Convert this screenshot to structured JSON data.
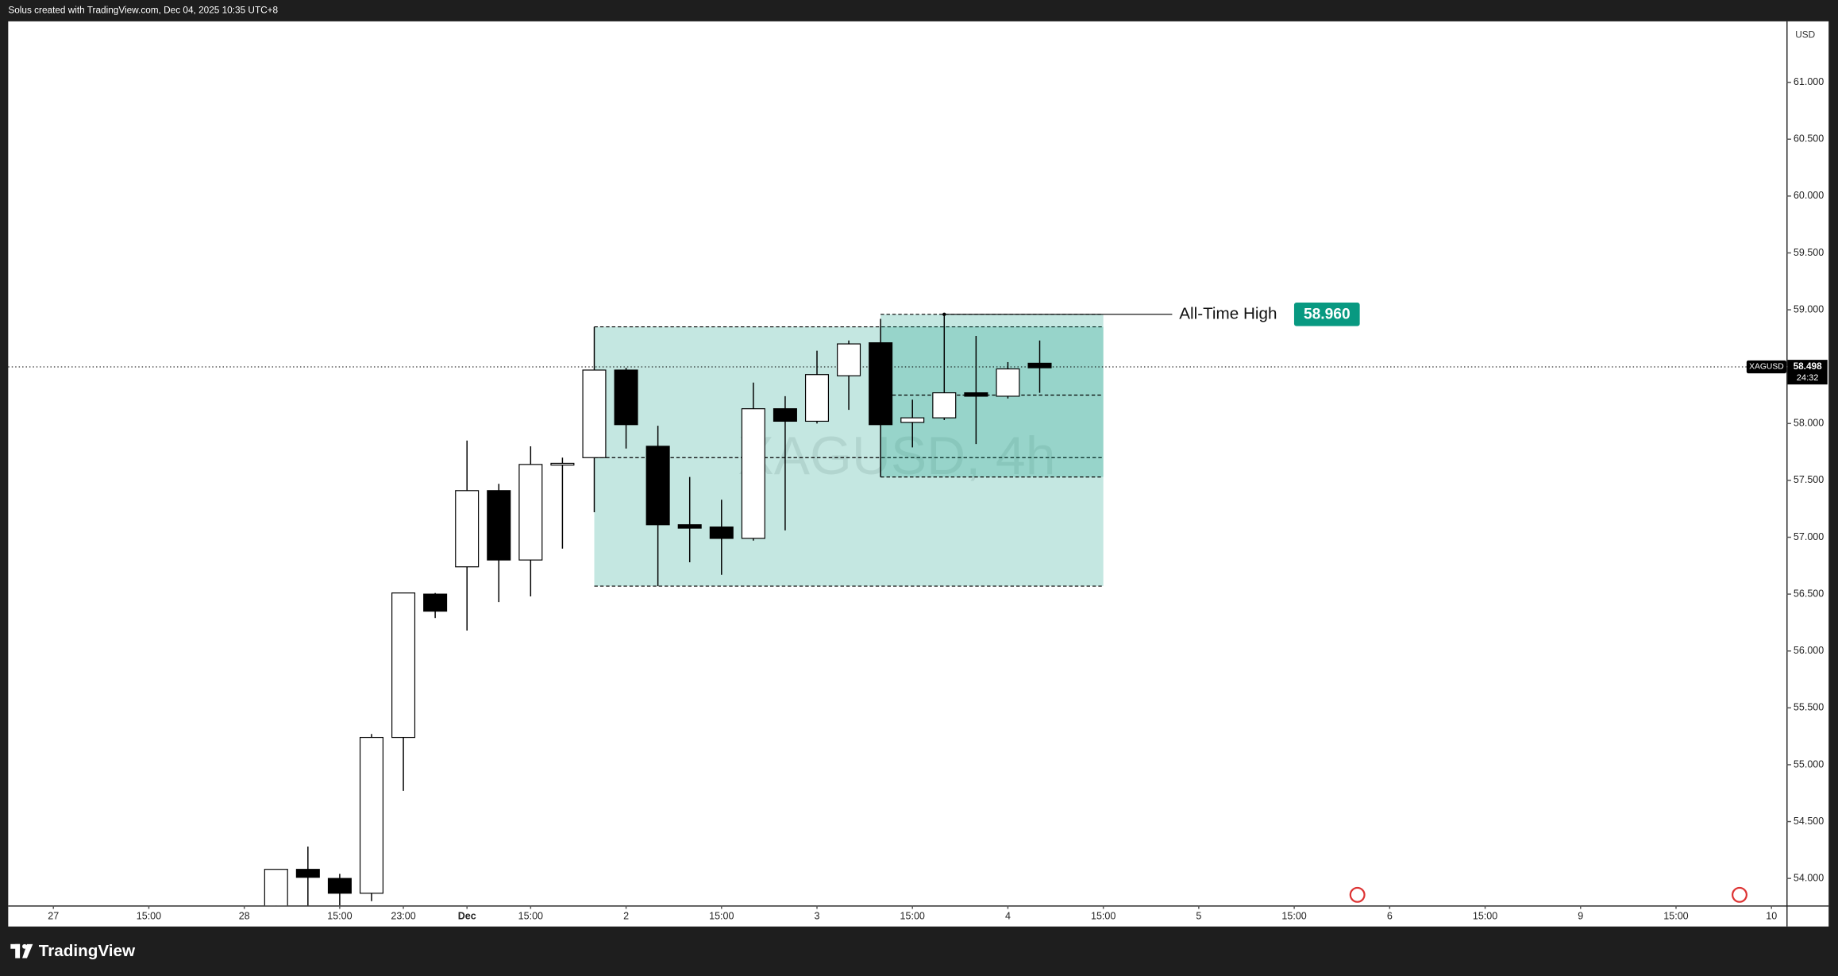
{
  "chart_data": {
    "type": "candlestick",
    "header": "Solus created with TradingView.com, Dec 04, 2025 10:35 UTC+8",
    "watermark": "XAGUSD, 4h",
    "currency": "USD",
    "symbol": "XAGUSD",
    "last_price": 58.498,
    "countdown": "24:32",
    "brand": "TradingView",
    "annotation": {
      "text": "All-Time High",
      "value": 58.96,
      "label": "58.960",
      "x": 25
    },
    "x": [
      4,
      5,
      6,
      7,
      8,
      9,
      10,
      11,
      12,
      13,
      14,
      15,
      16,
      17,
      18,
      19,
      20,
      21,
      22,
      23,
      24,
      25,
      26,
      27,
      28
    ],
    "open": [
      53.7,
      54.08,
      54.0,
      53.87,
      55.24,
      56.5,
      56.74,
      57.41,
      56.8,
      57.64,
      57.7,
      58.47,
      57.8,
      57.11,
      57.09,
      56.99,
      58.13,
      58.02,
      58.42,
      58.71,
      58.01,
      58.05,
      58.27,
      58.24,
      58.53
    ],
    "high": [
      54.08,
      54.28,
      54.04,
      55.27,
      56.51,
      56.51,
      57.85,
      57.47,
      57.8,
      57.7,
      58.85,
      58.49,
      57.98,
      57.53,
      57.33,
      58.36,
      58.24,
      58.64,
      58.73,
      58.92,
      58.21,
      58.96,
      58.77,
      58.54,
      58.73
    ],
    "low": [
      53.6,
      53.7,
      53.7,
      53.8,
      54.77,
      56.29,
      56.18,
      56.43,
      56.48,
      56.9,
      57.22,
      57.78,
      56.57,
      56.78,
      56.67,
      56.97,
      57.06,
      58.0,
      58.12,
      57.53,
      57.79,
      58.03,
      57.82,
      58.22,
      58.27
    ],
    "close": [
      54.08,
      54.01,
      53.87,
      55.24,
      56.51,
      56.35,
      57.41,
      56.8,
      57.64,
      57.65,
      58.47,
      57.99,
      57.11,
      57.08,
      56.99,
      58.13,
      58.02,
      58.43,
      58.7,
      57.99,
      58.05,
      58.27,
      58.24,
      58.48,
      58.49
    ],
    "colors": {
      "up": "#ffffff",
      "down": "#000000",
      "zone": "#089981",
      "label": "#089981"
    },
    "zones": [
      {
        "x": [
          14,
          30
        ],
        "y": [
          56.57,
          58.85
        ],
        "lines": [
          58.85,
          57.7,
          56.57
        ]
      },
      {
        "x": [
          23,
          30
        ],
        "y": [
          57.53,
          58.96
        ],
        "lines": [
          58.96,
          58.25,
          57.53
        ]
      }
    ],
    "xlim": [
      -4.42,
      51.47
    ],
    "xticks": [
      {
        "value": -3,
        "label": "27"
      },
      {
        "value": 0,
        "label": "15:00"
      },
      {
        "value": 3,
        "label": "28"
      },
      {
        "value": 6,
        "label": "15:00"
      },
      {
        "value": 8,
        "label": "23:00"
      },
      {
        "value": 10,
        "label": "Dec"
      },
      {
        "value": 12,
        "label": "15:00"
      },
      {
        "value": 15,
        "label": "2"
      },
      {
        "value": 18,
        "label": "15:00"
      },
      {
        "value": 21,
        "label": "3"
      },
      {
        "value": 24,
        "label": "15:00"
      },
      {
        "value": 27,
        "label": "4"
      },
      {
        "value": 30,
        "label": "15:00"
      },
      {
        "value": 33,
        "label": "5"
      },
      {
        "value": 36,
        "label": "15:00"
      },
      {
        "value": 39,
        "label": "6"
      },
      {
        "value": 42,
        "label": "15:00"
      },
      {
        "value": 45,
        "label": "9"
      },
      {
        "value": 48,
        "label": "15:00"
      },
      {
        "value": 51,
        "label": "10"
      }
    ],
    "ylim": [
      53.763,
      61.536
    ],
    "yticks": [
      {
        "value": 54,
        "label": "54.000"
      },
      {
        "value": 54.5,
        "label": "54.500"
      },
      {
        "value": 55,
        "label": "55.000"
      },
      {
        "value": 55.5,
        "label": "55.500"
      },
      {
        "value": 56,
        "label": "56.000"
      },
      {
        "value": 56.5,
        "label": "56.500"
      },
      {
        "value": 57,
        "label": "57.000"
      },
      {
        "value": 57.5,
        "label": "57.500"
      },
      {
        "value": 58,
        "label": "58.000"
      },
      {
        "value": 58.5,
        "label": "58.500"
      },
      {
        "value": 59,
        "label": "59.000"
      },
      {
        "value": 59.5,
        "label": "59.500"
      },
      {
        "value": 60,
        "label": "60.000"
      },
      {
        "value": 60.5,
        "label": "60.500"
      },
      {
        "value": 61,
        "label": "61.000"
      }
    ]
  }
}
